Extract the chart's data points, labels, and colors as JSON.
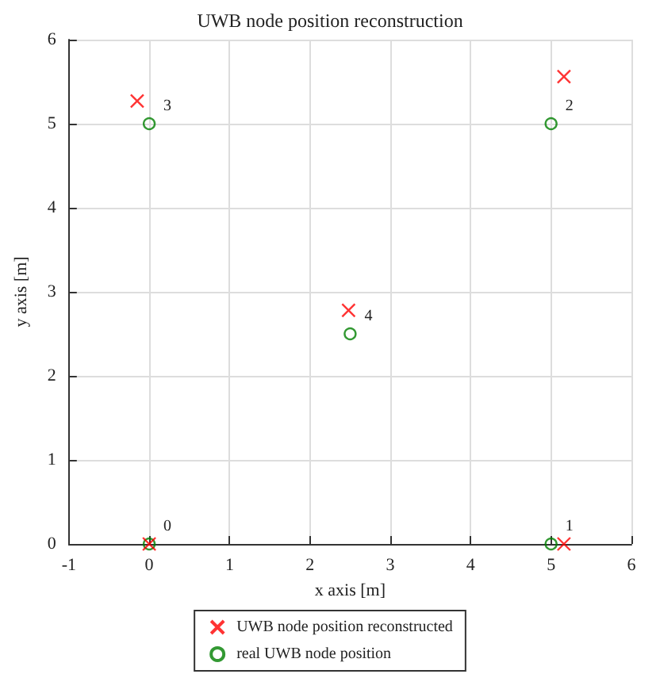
{
  "chart_data": {
    "type": "scatter",
    "title": "UWB node position reconstruction",
    "xlabel": "x axis [m]",
    "ylabel": "y axis [m]",
    "xlim": [
      -1,
      6
    ],
    "ylim": [
      0,
      6
    ],
    "xticks": [
      -1,
      0,
      1,
      2,
      3,
      4,
      5,
      6
    ],
    "yticks": [
      0,
      1,
      2,
      3,
      4,
      5,
      6
    ],
    "grid": true,
    "legend": "bottom",
    "series": [
      {
        "name": "UWB node position reconstructed",
        "color": "#ff0000",
        "marker": "cross",
        "x": [
          0,
          5.16,
          5.16,
          -0.15,
          2.48
        ],
        "values": [
          0,
          0,
          5.56,
          5.27,
          2.78
        ]
      },
      {
        "name": "real UWB node position",
        "color": "#008000",
        "marker": "circle",
        "x": [
          0,
          5,
          5,
          0,
          2.5
        ],
        "values": [
          0,
          0,
          5,
          5,
          2.5
        ]
      }
    ],
    "annotations": [
      {
        "text": "0",
        "x": 0,
        "y": 0
      },
      {
        "text": "1",
        "x": 5,
        "y": 0
      },
      {
        "text": "2",
        "x": 5,
        "y": 5
      },
      {
        "text": "3",
        "x": 0,
        "y": 5
      },
      {
        "text": "4",
        "x": 2.5,
        "y": 2.5
      }
    ]
  }
}
